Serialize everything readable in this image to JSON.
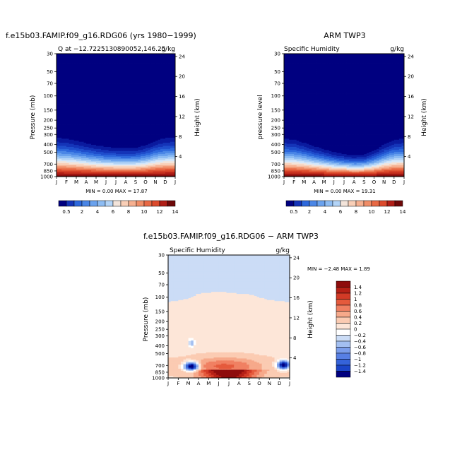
{
  "colors": {
    "positive_scale": [
      "#000080",
      "#0a1a9e",
      "#1434b8",
      "#1f4ecc",
      "#2d68dc",
      "#4a86e6",
      "#6aa2ee",
      "#8dbcf3",
      "#b3d4f7",
      "#d6e8fa",
      "#f3e4da",
      "#f9cfb7",
      "#f6b090",
      "#f08d67",
      "#e86944",
      "#dc4a2c",
      "#c93320",
      "#b01e16",
      "#8f1010",
      "#6e0808"
    ],
    "diff_scale": [
      "#000080",
      "#0d24a8",
      "#1b45c8",
      "#3563da",
      "#577fe4",
      "#7b9deb",
      "#a3bff1",
      "#cbdcf6",
      "#ffffff",
      "#fde6d8",
      "#fbcbb2",
      "#f6a98a",
      "#f08062",
      "#e55a3c",
      "#d23a26",
      "#b52016",
      "#8e0c0c"
    ]
  },
  "panels": {
    "p1": {
      "title": "f.e15b03.FAMIP.f09_g16.RDG06 (yrs 1980−1999)",
      "left_label": "Q at −12.7225130890052,146.25",
      "right_label": "g/kg",
      "ylabel": "Pressure (mb)",
      "ylabel_right": "Height (km)",
      "minmax": "MIN =    0.00 MAX =   17.87"
    },
    "p2": {
      "title": "ARM TWP3",
      "left_label": "Specific Humidity",
      "right_label": "g/kg",
      "ylabel": "pressure level",
      "ylabel_right": "Height (km)",
      "minmax": "MIN =    0.00 MAX =   19.31"
    },
    "p3": {
      "title": "f.e15b03.FAMIP.f09_g16.RDG06 − ARM TWP3",
      "left_label": "Specific Humidity",
      "right_label": "g/kg",
      "ylabel": "Pressure (mb)",
      "ylabel_right": "Height (km)",
      "minmax": "MIN =   −2.48 MAX =    1.89"
    }
  },
  "chart_data": [
    {
      "type": "heatmap",
      "name": "model",
      "x_ticks": [
        "J",
        "F",
        "M",
        "A",
        "M",
        "J",
        "J",
        "A",
        "S",
        "O",
        "N",
        "D",
        "J"
      ],
      "y_ticks": [
        30,
        50,
        70,
        100,
        150,
        200,
        250,
        300,
        400,
        500,
        700,
        850,
        1000
      ],
      "y_right_ticks": [
        24,
        20,
        16,
        12,
        8,
        4
      ],
      "ylim": [
        30,
        1000
      ],
      "surface_layer_top_mb": [
        290,
        300,
        320,
        345,
        370,
        390,
        400,
        405,
        400,
        370,
        320,
        295,
        290
      ],
      "min": 0.0,
      "max": 17.87
    },
    {
      "type": "heatmap",
      "name": "obs",
      "x_ticks": [
        "J",
        "F",
        "M",
        "A",
        "M",
        "J",
        "J",
        "A",
        "S",
        "O",
        "N",
        "D",
        "J"
      ],
      "y_ticks": [
        30,
        50,
        70,
        100,
        150,
        200,
        250,
        300,
        400,
        500,
        700,
        850,
        1000
      ],
      "y_right_ticks": [
        24,
        20,
        16,
        12,
        8,
        4
      ],
      "ylim": [
        30,
        1000
      ],
      "surface_layer_top_mb": [
        300,
        310,
        340,
        380,
        420,
        460,
        490,
        510,
        500,
        440,
        360,
        310,
        300
      ],
      "min": 0.0,
      "max": 19.31
    },
    {
      "type": "heatmap",
      "name": "difference",
      "x_ticks": [
        "J",
        "F",
        "M",
        "A",
        "M",
        "J",
        "J",
        "A",
        "S",
        "O",
        "N",
        "D",
        "J"
      ],
      "y_ticks": [
        30,
        50,
        70,
        100,
        150,
        200,
        250,
        300,
        400,
        500,
        700,
        850,
        1000
      ],
      "y_right_ticks": [
        24,
        20,
        16,
        12,
        8,
        4
      ],
      "ylim": [
        30,
        1000
      ],
      "positive_layer_top_mb": [
        115,
        110,
        105,
        90,
        88,
        85,
        88,
        90,
        92,
        100,
        108,
        112,
        115
      ],
      "min": -2.48,
      "max": 1.89
    },
    {
      "type": "colorbar",
      "name": "absolute-colorbar",
      "labels": [
        "0.5",
        "2",
        "4",
        "6",
        "8",
        "10",
        "12",
        "14"
      ]
    },
    {
      "type": "colorbar",
      "name": "difference-colorbar",
      "labels": [
        "1.4",
        "1.2",
        "1",
        "0.8",
        "0.6",
        "0.4",
        "0.2",
        "0",
        "−0.2",
        "−0.4",
        "−0.6",
        "−0.8",
        "−1",
        "−1.2",
        "−1.4"
      ]
    }
  ]
}
